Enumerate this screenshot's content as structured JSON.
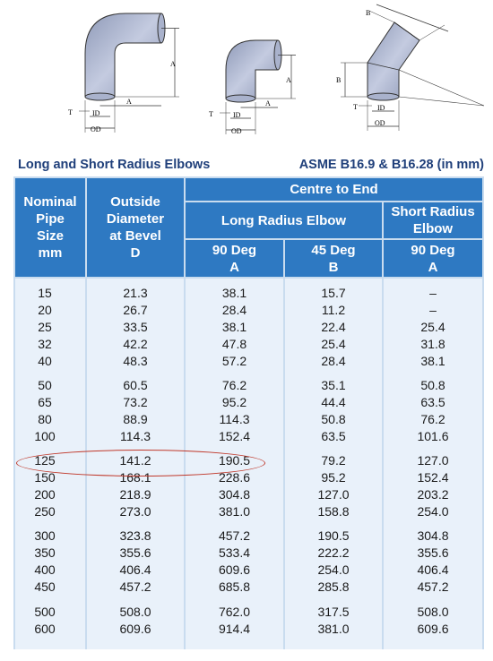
{
  "diagram": {
    "labels": {
      "a": "A",
      "b": "B",
      "t": "T",
      "id": "ID",
      "od": "OD"
    }
  },
  "title": {
    "left": "Long and Short Radius Elbows",
    "right": "ASME B16.9 & B16.28 (in mm)"
  },
  "headers": {
    "nominal": [
      "Nominal",
      "Pipe",
      "Size",
      "mm"
    ],
    "outside": [
      "Outside",
      "Diameter",
      "at Bevel",
      "D"
    ],
    "centre_to_end": "Centre to End",
    "long_radius": "Long Radius Elbow",
    "short_radius": [
      "Short Radius",
      "Elbow"
    ],
    "lr90": [
      "90 Deg",
      "A"
    ],
    "lr45": [
      "45 Deg",
      "B"
    ],
    "sr90": [
      "90 Deg",
      "A"
    ]
  },
  "groups": [
    [
      [
        "15",
        "21.3",
        "38.1",
        "15.7",
        "–"
      ],
      [
        "20",
        "26.7",
        "28.4",
        "11.2",
        "–"
      ],
      [
        "25",
        "33.5",
        "38.1",
        "22.4",
        "25.4"
      ],
      [
        "32",
        "42.2",
        "47.8",
        "25.4",
        "31.8"
      ],
      [
        "40",
        "48.3",
        "57.2",
        "28.4",
        "38.1"
      ]
    ],
    [
      [
        "50",
        "60.5",
        "76.2",
        "35.1",
        "50.8"
      ],
      [
        "65",
        "73.2",
        "95.2",
        "44.4",
        "63.5"
      ],
      [
        "80",
        "88.9",
        "114.3",
        "50.8",
        "76.2"
      ],
      [
        "100",
        "114.3",
        "152.4",
        "63.5",
        "101.6"
      ]
    ],
    [
      [
        "125",
        "141.2",
        "190.5",
        "79.2",
        "127.0"
      ],
      [
        "150",
        "168.1",
        "228.6",
        "95.2",
        "152.4"
      ],
      [
        "200",
        "218.9",
        "304.8",
        "127.0",
        "203.2"
      ],
      [
        "250",
        "273.0",
        "381.0",
        "158.8",
        "254.0"
      ]
    ],
    [
      [
        "300",
        "323.8",
        "457.2",
        "190.5",
        "304.8"
      ],
      [
        "350",
        "355.6",
        "533.4",
        "222.2",
        "355.6"
      ],
      [
        "400",
        "406.4",
        "609.6",
        "254.0",
        "406.4"
      ],
      [
        "450",
        "457.2",
        "685.8",
        "285.8",
        "457.2"
      ]
    ],
    [
      [
        "500",
        "508.0",
        "762.0",
        "317.5",
        "508.0"
      ],
      [
        "600",
        "609.6",
        "914.4",
        "381.0",
        "609.6"
      ]
    ]
  ]
}
